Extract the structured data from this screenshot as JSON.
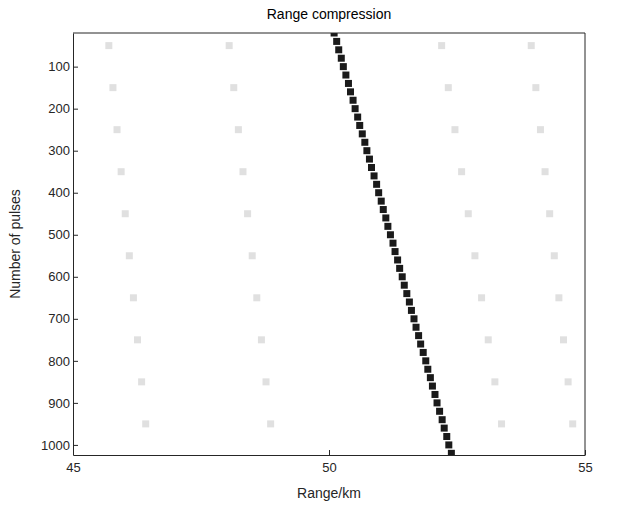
{
  "chart_data": {
    "type": "scatter",
    "title": "Range compression",
    "x_label": "Range/km",
    "y_label": "Number of pulses",
    "xlim": [
      45,
      55
    ],
    "xticks": [
      45,
      50,
      55
    ],
    "ylim": [
      20,
      1024
    ],
    "yticks": [
      100,
      200,
      300,
      400,
      500,
      600,
      700,
      800,
      900,
      1000
    ],
    "grid": false,
    "series": [
      {
        "color": "#e0e0e0",
        "marker": "square",
        "x": [
          45.7,
          45.78,
          45.86,
          45.94,
          46.02,
          46.1,
          46.18,
          46.26,
          46.34,
          46.42
        ],
        "values": [
          50,
          150,
          250,
          350,
          450,
          550,
          650,
          750,
          850,
          950
        ]
      },
      {
        "color": "#e0e0e0",
        "marker": "square",
        "x": [
          48.05,
          48.14,
          48.23,
          48.32,
          48.41,
          48.5,
          48.59,
          48.68,
          48.77,
          48.86
        ],
        "values": [
          50,
          150,
          250,
          350,
          450,
          550,
          650,
          750,
          850,
          950
        ]
      },
      {
        "color": "#e0e0e0",
        "marker": "square",
        "x": [
          52.2,
          52.33,
          52.46,
          52.59,
          52.72,
          52.85,
          52.98,
          53.11,
          53.24,
          53.37
        ],
        "values": [
          50,
          150,
          250,
          350,
          450,
          550,
          650,
          750,
          850,
          950
        ]
      },
      {
        "color": "#e0e0e0",
        "marker": "square",
        "x": [
          53.95,
          54.04,
          54.13,
          54.22,
          54.31,
          54.4,
          54.49,
          54.58,
          54.67,
          54.76
        ],
        "values": [
          50,
          150,
          250,
          350,
          450,
          550,
          650,
          750,
          850,
          950
        ]
      },
      {
        "color": "#1a1a1a",
        "marker": "square",
        "x": [
          50.1,
          50.15,
          50.19,
          50.24,
          50.28,
          50.33,
          50.38,
          50.42,
          50.47,
          50.51,
          50.56,
          50.6,
          50.65,
          50.7,
          50.74,
          50.79,
          50.83,
          50.88,
          50.93,
          50.97,
          51.02,
          51.06,
          51.11,
          51.15,
          51.2,
          51.25,
          51.29,
          51.34,
          51.38,
          51.43,
          51.47,
          51.52,
          51.57,
          51.61,
          51.66,
          51.7,
          51.75,
          51.79,
          51.84,
          51.89,
          51.93,
          51.98,
          52.02,
          52.07,
          52.11,
          52.16,
          52.21,
          52.25,
          52.3,
          52.34,
          52.39
        ],
        "values": [
          20,
          40,
          60,
          80,
          100,
          120,
          140,
          160,
          180,
          200,
          220,
          240,
          260,
          280,
          300,
          320,
          340,
          360,
          380,
          400,
          420,
          440,
          460,
          480,
          500,
          520,
          540,
          560,
          580,
          600,
          620,
          640,
          660,
          680,
          700,
          720,
          740,
          760,
          780,
          800,
          820,
          840,
          860,
          880,
          900,
          920,
          940,
          960,
          980,
          1000,
          1020
        ]
      }
    ]
  }
}
